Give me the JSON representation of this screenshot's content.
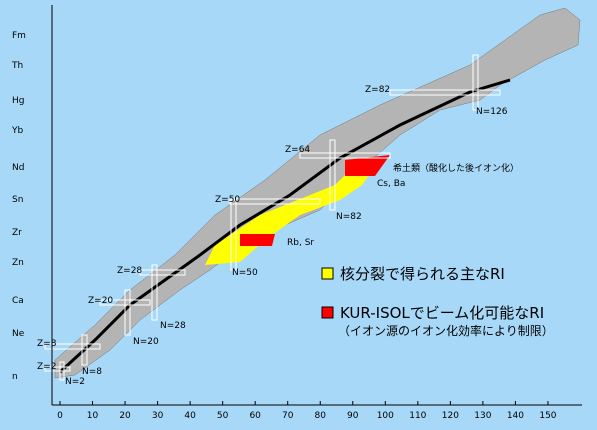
{
  "axis": {
    "x_ticks": [
      0,
      10,
      20,
      30,
      40,
      50,
      60,
      70,
      80,
      90,
      100,
      110,
      120,
      130,
      140,
      150
    ],
    "elements": [
      "Fm",
      "Th",
      "Hg",
      "Yb",
      "Nd",
      "Sn",
      "Zr",
      "Zn",
      "Ca",
      "Ne",
      "n"
    ]
  },
  "magic_labels": [
    "Z=82",
    "N=126",
    "Z=64",
    "N=82",
    "Z=50",
    "N=50",
    "Z=28",
    "Z=20",
    "N=28",
    "N=20",
    "Z=8",
    "N=8",
    "Z=2",
    "N=2"
  ],
  "annotations": {
    "rare_earth": "希土類（酸化した後イオン化）",
    "cs_ba": "Cs, Ba",
    "rb_sr": "Rb, Sr"
  },
  "legend": {
    "fission": "核分裂で得られる主なRI",
    "isol": "KUR-ISOLでビーム化可能なRI",
    "isol_note": "（イオン源のイオン化効率により制限）"
  }
}
